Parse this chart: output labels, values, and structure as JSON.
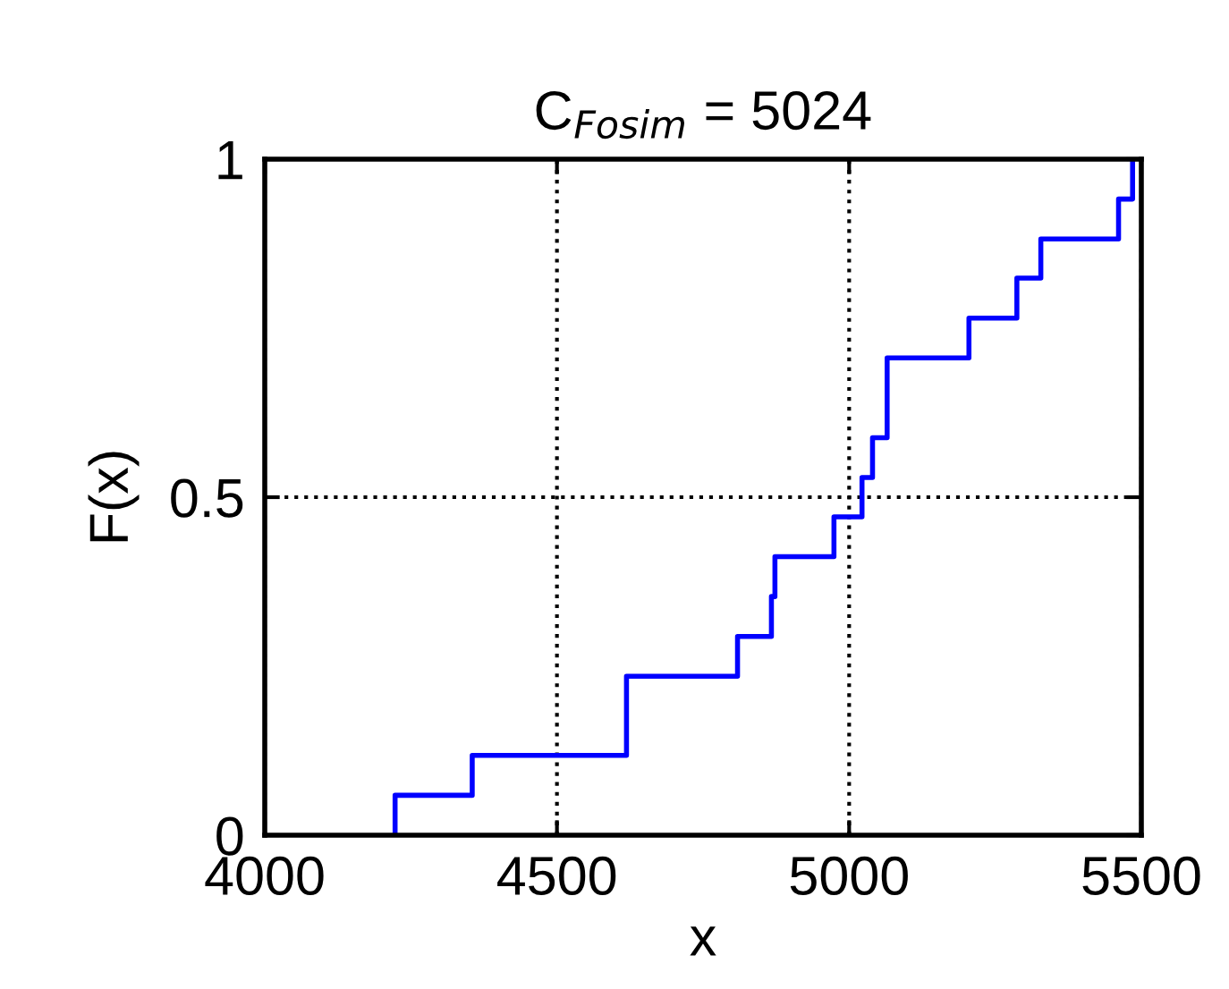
{
  "chart_data": {
    "type": "step",
    "title": "C$_{Fosim}$ = 5024",
    "xlabel": "x",
    "ylabel": "F(x)",
    "x": [
      4223,
      4223,
      4355,
      4619,
      4809,
      4867,
      4873,
      4974,
      5022,
      5040,
      5065,
      5205,
      5287,
      5328,
      5461,
      5485
    ],
    "series": [
      {
        "color": "#0000ff",
        "values": [
          0,
          0.059,
          0.118,
          0.235,
          0.294,
          0.353,
          0.412,
          0.471,
          0.529,
          0.588,
          0.706,
          0.765,
          0.824,
          0.882,
          0.941,
          1
        ]
      }
    ],
    "xlim": [
      4000,
      5500
    ],
    "xticks": [
      4000,
      4500,
      5000,
      5500
    ],
    "ylim": [
      0,
      1
    ],
    "yticks": [
      0,
      0.5,
      1
    ],
    "grid": true,
    "line_style": "solid",
    "legend": false
  }
}
